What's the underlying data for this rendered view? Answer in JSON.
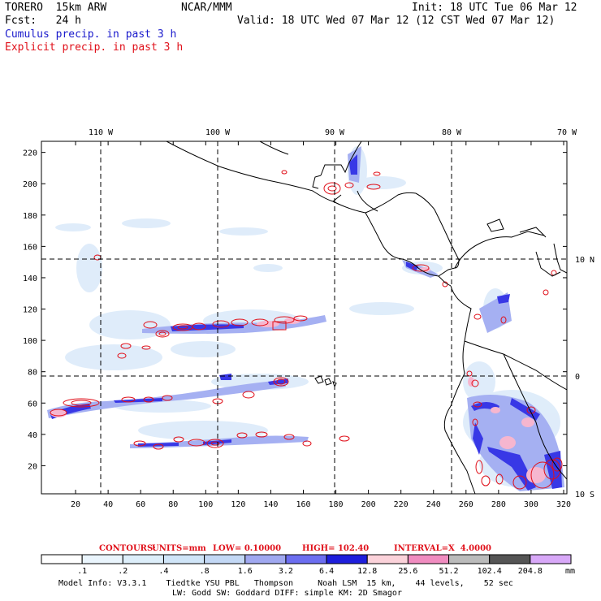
{
  "header": {
    "model": "TORERO  15km ARW",
    "org": "NCAR/MMM",
    "init": "Init: 18 UTC Tue 06 Mar 12",
    "fcst_label": "Fcst:   24 h",
    "valid": "Valid: 18 UTC Wed 07 Mar 12 (12 CST Wed 07 Mar 12)",
    "legend_cumulus": "Cumulus precip. in past 3 h",
    "legend_explicit": "Explicit precip. in past 3 h"
  },
  "colors": {
    "cumulus_text": "#1a1acc",
    "explicit_text": "#e0101a",
    "explicit_contour": "#e0101a"
  },
  "axes": {
    "x_ticks": [
      "20",
      "40",
      "60",
      "80",
      "100",
      "120",
      "140",
      "160",
      "180",
      "200",
      "220",
      "240",
      "260",
      "280",
      "300",
      "320"
    ],
    "y_ticks": [
      "20",
      "40",
      "60",
      "80",
      "100",
      "120",
      "140",
      "160",
      "180",
      "200",
      "220"
    ],
    "lon_labels": [
      "110 W",
      "100 W",
      "90 W",
      "80 W",
      "70 W"
    ],
    "lat_labels": [
      "10 N",
      "0",
      "10 S"
    ]
  },
  "contour_info": {
    "label": "CONTOURS:",
    "units": "UNITS=mm",
    "low": "LOW= 0.10000",
    "high": "HIGH= 102.40",
    "interval": "INTERVAL=X  4.0000"
  },
  "colorbar": {
    "labels": [
      ".1",
      ".2",
      ".4",
      ".8",
      "1.6",
      "3.2",
      "6.4",
      "12.8",
      "25.6",
      "51.2",
      "102.4",
      "204.8"
    ],
    "unit": "mm",
    "colors": [
      "#ffffff",
      "#eaf5fd",
      "#ddeefa",
      "#d0e5f8",
      "#c3d8f5",
      "#a0a8f0",
      "#6c6ef0",
      "#1e1edc",
      "#fbd2da",
      "#f08cc0",
      "#bbbbbb",
      "#555555",
      "#d8a8f8"
    ]
  },
  "footer": {
    "line1": "Model Info: V3.3.1    Tiedtke YSU PBL   Thompson     Noah LSM  15 km,    44 levels,    52 sec",
    "line2": "LW: Godd SW: Goddard DIFF: simple KM: 2D Smagor"
  }
}
